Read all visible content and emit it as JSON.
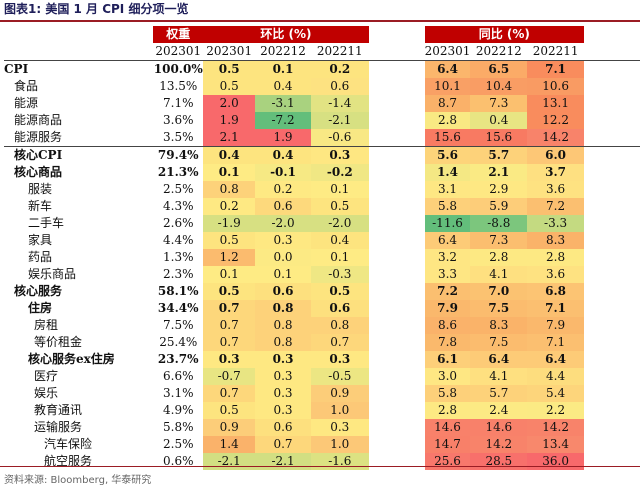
{
  "caption": "图表1:  美国 1 月 CPI 细分项一览",
  "headers": {
    "weight": "权重",
    "mom": "环比 (%)",
    "yoy": "同比 (%)",
    "sub": [
      "202301",
      "202301",
      "202212",
      "202211",
      "202301",
      "202212",
      "202211"
    ]
  },
  "rows": [
    {
      "name": "CPI",
      "indent": 0,
      "bold": true,
      "weight": "100.0%",
      "mom": [
        "0.5",
        "0.1",
        "0.2"
      ],
      "yoy": [
        "6.4",
        "6.5",
        "7.1"
      ],
      "momc": [
        "#fde47f",
        "#fde47f",
        "#fde47f"
      ],
      "yoyc": [
        "#fbb66c",
        "#fbab67",
        "#f98c5d"
      ]
    },
    {
      "name": "食品",
      "indent": 1,
      "bold": false,
      "weight": "13.5%",
      "mom": [
        "0.5",
        "0.4",
        "0.6"
      ],
      "yoy": [
        "10.1",
        "10.4",
        "10.6"
      ],
      "momc": [
        "#fde47f",
        "#fde47f",
        "#fde281"
      ],
      "yoyc": [
        "#f9a065",
        "#f99d64",
        "#f99b63"
      ]
    },
    {
      "name": "能源",
      "indent": 1,
      "bold": false,
      "weight": "7.1%",
      "mom": [
        "2.0",
        "-3.1",
        "-1.4"
      ],
      "yoy": [
        "8.7",
        "7.3",
        "13.1"
      ],
      "momc": [
        "#f8696b",
        "#a9d27f",
        "#e2e383"
      ],
      "yoyc": [
        "#fab169",
        "#fbc06f",
        "#f98c5d"
      ]
    },
    {
      "name": "能源商品",
      "indent": 2,
      "bold": false,
      "weight": "3.6%",
      "mom": [
        "1.9",
        "-7.2",
        "-2.1"
      ],
      "yoy": [
        "2.8",
        "0.4",
        "12.2"
      ],
      "momc": [
        "#f8696b",
        "#63be7b",
        "#d7e082"
      ],
      "yoyc": [
        "#f9e983",
        "#e8e583",
        "#f98c5d"
      ]
    },
    {
      "name": "能源服务",
      "indent": 2,
      "bold": false,
      "weight": "3.5%",
      "mom": [
        "2.1",
        "1.9",
        "-0.6"
      ],
      "yoy": [
        "15.6",
        "15.6",
        "14.2"
      ],
      "momc": [
        "#f8696b",
        "#f8696b",
        "#f8e884"
      ],
      "yoyc": [
        "#f87a62",
        "#f87a62",
        "#f8836a"
      ]
    },
    {
      "name": "核心CPI",
      "indent": 1,
      "bold": true,
      "weight": "79.4%",
      "mom": [
        "0.4",
        "0.4",
        "0.3"
      ],
      "yoy": [
        "5.6",
        "5.7",
        "6.0"
      ],
      "momc": [
        "#fde47f",
        "#fde47f",
        "#fee782"
      ],
      "yoyc": [
        "#fdd47a",
        "#fdd27a",
        "#fdc776"
      ]
    },
    {
      "name": "核心商品",
      "indent": 2,
      "bold": true,
      "weight": "21.3%",
      "mom": [
        "0.1",
        "-0.1",
        "-0.2"
      ],
      "yoy": [
        "1.4",
        "2.1",
        "3.7"
      ],
      "momc": [
        "#feeb84",
        "#f6e984",
        "#f0e784"
      ],
      "yoyc": [
        "#f4e884",
        "#faea84",
        "#fee081"
      ]
    },
    {
      "name": "服装",
      "indent": 3,
      "bold": false,
      "weight": "2.5%",
      "mom": [
        "0.8",
        "0.2",
        "0.1"
      ],
      "yoy": [
        "3.1",
        "2.9",
        "3.6"
      ],
      "momc": [
        "#fdd27a",
        "#fee983",
        "#feeb84"
      ],
      "yoyc": [
        "#fee783",
        "#fee883",
        "#fee281"
      ]
    },
    {
      "name": "新车",
      "indent": 3,
      "bold": false,
      "weight": "4.3%",
      "mom": [
        "0.2",
        "0.6",
        "0.5"
      ],
      "yoy": [
        "5.8",
        "5.9",
        "7.2"
      ],
      "momc": [
        "#fee983",
        "#fdd97c",
        "#fde47f"
      ],
      "yoyc": [
        "#fdd07a",
        "#fdcd79",
        "#fbbf70"
      ]
    },
    {
      "name": "二手车",
      "indent": 3,
      "bold": false,
      "weight": "2.6%",
      "mom": [
        "-1.9",
        "-2.0",
        "-2.0"
      ],
      "yoy": [
        "-11.6",
        "-8.8",
        "-3.3"
      ],
      "momc": [
        "#d7e082",
        "#d7e082",
        "#d7e082"
      ],
      "yoyc": [
        "#63be7b",
        "#7cc67d",
        "#c4da81"
      ]
    },
    {
      "name": "家具",
      "indent": 3,
      "bold": false,
      "weight": "4.4%",
      "mom": [
        "0.5",
        "0.3",
        "0.4"
      ],
      "yoy": [
        "6.4",
        "7.3",
        "8.3"
      ],
      "momc": [
        "#fde47f",
        "#fee882",
        "#fde47f"
      ],
      "yoyc": [
        "#fdcb77",
        "#fbbe6f",
        "#fab369"
      ]
    },
    {
      "name": "药品",
      "indent": 3,
      "bold": false,
      "weight": "1.3%",
      "mom": [
        "1.2",
        "0.0",
        "0.1"
      ],
      "yoy": [
        "3.2",
        "2.8",
        "2.8"
      ],
      "momc": [
        "#fbbb6e",
        "#fcea84",
        "#feeb84"
      ],
      "yoyc": [
        "#fee683",
        "#fde983",
        "#fde983"
      ]
    },
    {
      "name": "娱乐商品",
      "indent": 3,
      "bold": false,
      "weight": "2.3%",
      "mom": [
        "0.1",
        "0.1",
        "-0.3"
      ],
      "yoy": [
        "3.3",
        "4.1",
        "3.6"
      ],
      "momc": [
        "#feeb84",
        "#feeb84",
        "#efe784"
      ],
      "yoyc": [
        "#fee683",
        "#fee080",
        "#fee281"
      ]
    },
    {
      "name": "核心服务",
      "indent": 2,
      "bold": true,
      "weight": "58.1%",
      "mom": [
        "0.5",
        "0.6",
        "0.5"
      ],
      "yoy": [
        "7.2",
        "7.0",
        "6.8"
      ],
      "momc": [
        "#fde47f",
        "#fde07e",
        "#fde47f"
      ],
      "yoyc": [
        "#fbbf70",
        "#fbc271",
        "#fcc473"
      ]
    },
    {
      "name": "住房",
      "indent": 3,
      "bold": true,
      "weight": "34.4%",
      "mom": [
        "0.7",
        "0.8",
        "0.6"
      ],
      "yoy": [
        "7.9",
        "7.5",
        "7.1"
      ],
      "momc": [
        "#fdd77b",
        "#fdd27a",
        "#fde07e"
      ],
      "yoyc": [
        "#fab86c",
        "#fbbc6e",
        "#fbbf70"
      ]
    },
    {
      "name": "房租",
      "indent": 4,
      "bold": false,
      "weight": "7.5%",
      "mom": [
        "0.7",
        "0.8",
        "0.8"
      ],
      "yoy": [
        "8.6",
        "8.3",
        "7.9"
      ],
      "momc": [
        "#fdd77b",
        "#fdd27a",
        "#fdd27a"
      ],
      "yoyc": [
        "#fab26a",
        "#fab369",
        "#fab86c"
      ]
    },
    {
      "name": "等价租金",
      "indent": 4,
      "bold": false,
      "weight": "25.4%",
      "mom": [
        "0.7",
        "0.8",
        "0.7"
      ],
      "yoy": [
        "7.8",
        "7.5",
        "7.1"
      ],
      "momc": [
        "#fdd77b",
        "#fdd27a",
        "#fdd77b"
      ],
      "yoyc": [
        "#fab96c",
        "#fbbc6e",
        "#fbbf70"
      ]
    },
    {
      "name": "核心服务ex住房",
      "indent": 3,
      "bold": true,
      "weight": "23.7%",
      "mom": [
        "0.3",
        "0.3",
        "0.3"
      ],
      "yoy": [
        "6.1",
        "6.4",
        "6.4"
      ],
      "momc": [
        "#fee882",
        "#fee882",
        "#fee882"
      ],
      "yoyc": [
        "#fdcf79",
        "#fdcb77",
        "#fdcb77"
      ]
    },
    {
      "name": "医疗",
      "indent": 4,
      "bold": false,
      "weight": "6.6%",
      "mom": [
        "-0.7",
        "0.3",
        "-0.5"
      ],
      "yoy": [
        "3.0",
        "4.1",
        "4.4"
      ],
      "momc": [
        "#e8e583",
        "#fee882",
        "#ece683"
      ],
      "yoyc": [
        "#fee783",
        "#fee080",
        "#fddd7e"
      ]
    },
    {
      "name": "娱乐",
      "indent": 4,
      "bold": false,
      "weight": "3.1%",
      "mom": [
        "0.7",
        "0.3",
        "0.9"
      ],
      "yoy": [
        "5.8",
        "5.7",
        "5.4"
      ],
      "momc": [
        "#fdd77b",
        "#fee882",
        "#fccd79"
      ],
      "yoyc": [
        "#fdd07a",
        "#fdd27a",
        "#fdd57b"
      ]
    },
    {
      "name": "教育通讯",
      "indent": 4,
      "bold": false,
      "weight": "4.9%",
      "mom": [
        "0.5",
        "0.3",
        "1.0"
      ],
      "yoy": [
        "2.8",
        "2.4",
        "2.2"
      ],
      "momc": [
        "#fde47f",
        "#fee882",
        "#fcc877"
      ],
      "yoyc": [
        "#fde983",
        "#fcea84",
        "#fbea84"
      ]
    },
    {
      "name": "运输服务",
      "indent": 4,
      "bold": false,
      "weight": "5.8%",
      "mom": [
        "0.9",
        "0.6",
        "0.3"
      ],
      "yoy": [
        "14.6",
        "14.6",
        "14.2"
      ],
      "momc": [
        "#fccd79",
        "#fde07e",
        "#fee882"
      ],
      "yoyc": [
        "#f8816a",
        "#f8816a",
        "#f8836a"
      ]
    },
    {
      "name": "汽车保险",
      "indent": 5,
      "bold": false,
      "weight": "2.5%",
      "mom": [
        "1.4",
        "0.7",
        "1.0"
      ],
      "yoy": [
        "14.7",
        "14.2",
        "13.4"
      ],
      "momc": [
        "#fab26a",
        "#fdd77b",
        "#fcc877"
      ],
      "yoyc": [
        "#f88069",
        "#f8836a",
        "#f8886c"
      ]
    },
    {
      "name": "航空服务",
      "indent": 5,
      "bold": false,
      "weight": "0.6%",
      "mom": [
        "-2.1",
        "-2.1",
        "-1.6"
      ],
      "yoy": [
        "25.6",
        "28.5",
        "36.0"
      ],
      "momc": [
        "#d2df82",
        "#d2df82",
        "#dce282"
      ],
      "yoyc": [
        "#f8786c",
        "#f8706b",
        "#f8696b"
      ]
    }
  ],
  "source": "资料来源: Bloomberg, 华泰研究"
}
